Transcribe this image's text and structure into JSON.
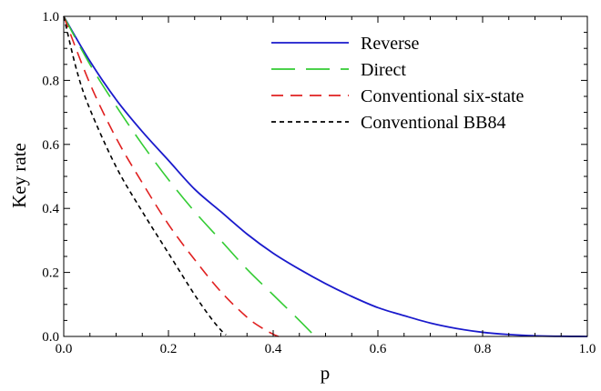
{
  "chart_data": {
    "type": "line",
    "title": "",
    "xlabel": "p",
    "ylabel": "Key rate",
    "xlim": [
      0.0,
      1.0
    ],
    "ylim": [
      0.0,
      1.0
    ],
    "grid": false,
    "legend_position": "top-right",
    "x_ticks": [
      "0.0",
      "0.2",
      "0.4",
      "0.6",
      "0.8",
      "1.0"
    ],
    "y_ticks": [
      "0.0",
      "0.2",
      "0.4",
      "0.6",
      "0.8",
      "1.0"
    ],
    "series": [
      {
        "name": "Reverse",
        "color": "#1a1acc",
        "style": "solid",
        "x": [
          0.0,
          0.05,
          0.1,
          0.15,
          0.2,
          0.25,
          0.3,
          0.35,
          0.4,
          0.45,
          0.5,
          0.55,
          0.6,
          0.65,
          0.7,
          0.75,
          0.8,
          0.85,
          0.9,
          0.95,
          1.0
        ],
        "y": [
          1.0,
          0.86,
          0.74,
          0.64,
          0.55,
          0.46,
          0.39,
          0.32,
          0.26,
          0.21,
          0.165,
          0.125,
          0.09,
          0.065,
          0.042,
          0.025,
          0.013,
          0.006,
          0.002,
          0.0005,
          0.0
        ]
      },
      {
        "name": "Direct",
        "color": "#33cc33",
        "style": "long-dash",
        "x": [
          0.0,
          0.05,
          0.1,
          0.15,
          0.2,
          0.25,
          0.3,
          0.35,
          0.4,
          0.45,
          0.48
        ],
        "y": [
          1.0,
          0.85,
          0.72,
          0.6,
          0.49,
          0.39,
          0.3,
          0.21,
          0.13,
          0.05,
          0.0
        ]
      },
      {
        "name": "Conventional six-state",
        "color": "#e02020",
        "style": "dash",
        "x": [
          0.0,
          0.05,
          0.1,
          0.15,
          0.2,
          0.25,
          0.3,
          0.35,
          0.38,
          0.4,
          0.41
        ],
        "y": [
          1.0,
          0.79,
          0.62,
          0.48,
          0.35,
          0.24,
          0.14,
          0.06,
          0.025,
          0.007,
          0.0
        ]
      },
      {
        "name": "Conventional BB84",
        "color": "#000000",
        "style": "short-dash",
        "x": [
          0.0,
          0.025,
          0.05,
          0.1,
          0.15,
          0.2,
          0.25,
          0.28,
          0.3,
          0.31
        ],
        "y": [
          1.0,
          0.83,
          0.71,
          0.53,
          0.39,
          0.26,
          0.13,
          0.06,
          0.02,
          0.005
        ]
      }
    ]
  }
}
